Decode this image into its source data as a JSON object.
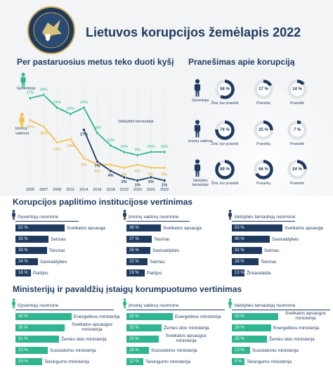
{
  "header": {
    "title": "Lietuvos korupcijos žemėlapis 2022",
    "logo_text": "SPECIALIŲJŲ TYRIMŲ TARNYBA"
  },
  "colors": {
    "navy": "#1f3a5f",
    "teal": "#2fb58f",
    "gold": "#f2c14e",
    "grid": "#d5dbe2"
  },
  "icons": [
    "person-icon",
    "logo-icon"
  ],
  "chart_data": [
    {
      "type": "line",
      "title": "Per pastaruosius metus teko duoti kyšį",
      "x": [
        "2005",
        "2007",
        "2008",
        "2011",
        "2014",
        "2016",
        "2018",
        "2019",
        "2020",
        "2021",
        "2022"
      ],
      "series": [
        {
          "name": "Gyventojai",
          "color": "#2fb58f",
          "values": [
            27,
            28,
            24,
            22,
            24,
            16,
            12,
            10,
            9,
            10,
            10
          ]
        },
        {
          "name": "Įmonių vadovai",
          "color": "#f2c14e",
          "values": [
            20,
            18,
            13,
            14,
            8,
            6,
            6,
            5,
            6,
            5,
            5
          ]
        },
        {
          "name": "Valstybės tarnautojai",
          "color": "#1f3a5f",
          "values": [
            null,
            null,
            null,
            null,
            17,
            7,
            4,
            2,
            1,
            2,
            1
          ]
        }
      ],
      "data_labels": [
        [
          "27%",
          "28%",
          "24%",
          "22%",
          "24%",
          "16%",
          "12%",
          "10%",
          "9%",
          "10%",
          "10%"
        ],
        [
          "20%",
          "18%",
          "13%",
          "14%",
          "8%",
          "6%",
          "6%",
          "5%",
          "6%",
          "5%",
          "5%"
        ],
        [
          "",
          "",
          "",
          "",
          "17%",
          "7%",
          "4%",
          "2%",
          "1%",
          "2%",
          "1%"
        ]
      ],
      "ylim": [
        0,
        30
      ]
    },
    {
      "type": "pie",
      "title": "Pranešimas apie korupciją",
      "groups": [
        {
          "name": "Gyventojai",
          "values": [
            58,
            17,
            14
          ]
        },
        {
          "name": "Įmonių vadovai",
          "values": [
            76,
            25,
            7
          ]
        },
        {
          "name": "Valstybės tarnautojai",
          "values": [
            89,
            66,
            24
          ]
        }
      ],
      "categories": [
        "Žino, kur pranešti",
        "Pranešių",
        "Praneštė"
      ],
      "labels": [
        [
          "58 %",
          "17 %",
          "14 %"
        ],
        [
          "76 %",
          "25 %",
          "7 %"
        ],
        [
          "89 %",
          "66 %",
          "24 %"
        ]
      ]
    },
    {
      "type": "bar",
      "title": "Korupcijos paplitimo institucijose vertinimas",
      "groups": [
        {
          "name": "Gyventojų nuomone",
          "categories": [
            "Sveikatos apsauga",
            "Seimas",
            "Teismai",
            "Savivaldybės",
            "Partijos"
          ],
          "values": [
            52,
            35,
            33,
            24,
            16
          ],
          "labels": [
            "52 %",
            "35 %",
            "33 %",
            "24 %",
            "16 %"
          ]
        },
        {
          "name": "Įmonių vadovų nuomone",
          "categories": [
            "Sveikatos apsauga",
            "Teismai",
            "Savivaldybės",
            "Seimas",
            "Partijos"
          ],
          "values": [
            36,
            27,
            25,
            22,
            19
          ],
          "labels": [
            "36 %",
            "27 %",
            "25 %",
            "22 %",
            "19 %"
          ]
        },
        {
          "name": "Valstybės tarnautojų nuomone",
          "categories": [
            "Sveikatos apsauga",
            "Savivaldybės",
            "Seimas",
            "Teismai",
            "Žiniasklaida"
          ],
          "values": [
            53,
            40,
            32,
            28,
            13
          ],
          "labels": [
            "53 %",
            "40 %",
            "32 %",
            "28 %",
            "13 %"
          ]
        }
      ]
    },
    {
      "type": "bar",
      "title": "Ministerijų ir pavaldžių įstaigų korumpuotumo vertinimas",
      "groups": [
        {
          "name": "Gyventojų nuomone",
          "categories": [
            "Energetikos ministerija",
            "Sveikatos apsaugos ministerija",
            "Žemės ūkio ministerija",
            "Susisiekimo ministerija",
            "Teisingumo ministerija"
          ],
          "values": [
            40,
            35,
            31,
            23,
            19
          ],
          "labels": [
            "40 %",
            "35 %",
            "31 %",
            "23 %",
            "19 %"
          ]
        },
        {
          "name": "Įmonių vadovų nuomone",
          "categories": [
            "Energetikos ministerija",
            "Žemės ūkio ministerija",
            "Sveikatos apsaugos ministerija",
            "Susisiekimo ministerija",
            "Teisingumo ministerija"
          ],
          "values": [
            33,
            25,
            23,
            16,
            12
          ],
          "labels": [
            "33 %",
            "25 %",
            "23 %",
            "16 %",
            "12 %"
          ]
        },
        {
          "name": "Valstybės tarnautojų nuomone",
          "categories": [
            "Sveikatos apsaugos ministerija",
            "Energetikos ministerija",
            "Žemės ūkio ministerija",
            "Susisiekimo ministerija",
            "Teisingumo ministerija"
          ],
          "values": [
            33,
            28,
            25,
            13,
            9
          ],
          "labels": [
            "33 %",
            "28 %",
            "25 %",
            "13 %",
            "9 %"
          ]
        }
      ]
    }
  ]
}
